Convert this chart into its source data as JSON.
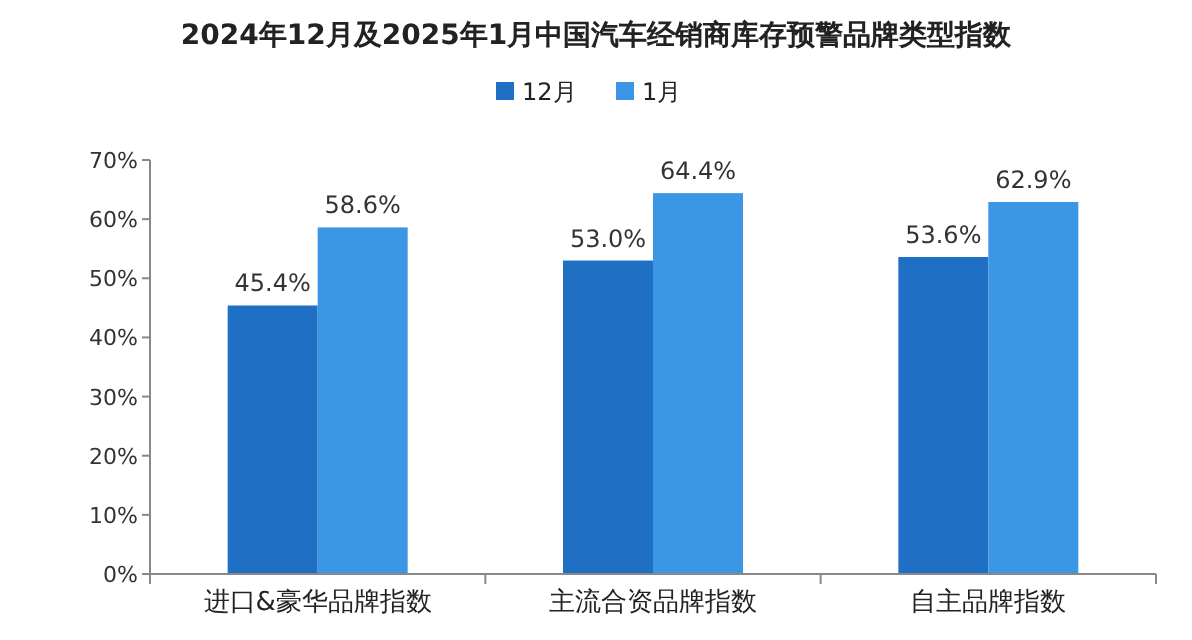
{
  "chart_data": {
    "type": "bar",
    "title": "2024年12月及2025年1月中国汽车经销商库存预警品牌类型指数",
    "categories": [
      "进口&豪华品牌指数",
      "主流合资品牌指数",
      "自主品牌指数"
    ],
    "series": [
      {
        "name": "12月",
        "color": "#1f6fc5",
        "values": [
          45.4,
          53.0,
          53.6
        ],
        "value_labels": [
          "45.4%",
          "53.0%",
          "53.6%"
        ]
      },
      {
        "name": "1月",
        "color": "#3b96e6",
        "values": [
          58.6,
          64.4,
          62.9
        ],
        "value_labels": [
          "58.6%",
          "64.4%",
          "62.9%"
        ]
      }
    ],
    "ylim": [
      0,
      70
    ],
    "yticks": [
      {
        "value": 0,
        "label": "0%"
      },
      {
        "value": 10,
        "label": "10%"
      },
      {
        "value": 20,
        "label": "20%"
      },
      {
        "value": 30,
        "label": "30%"
      },
      {
        "value": 40,
        "label": "40%"
      },
      {
        "value": 50,
        "label": "50%"
      },
      {
        "value": 60,
        "label": "60%"
      },
      {
        "value": 70,
        "label": "70%"
      }
    ],
    "grid": false,
    "legend": "top"
  }
}
